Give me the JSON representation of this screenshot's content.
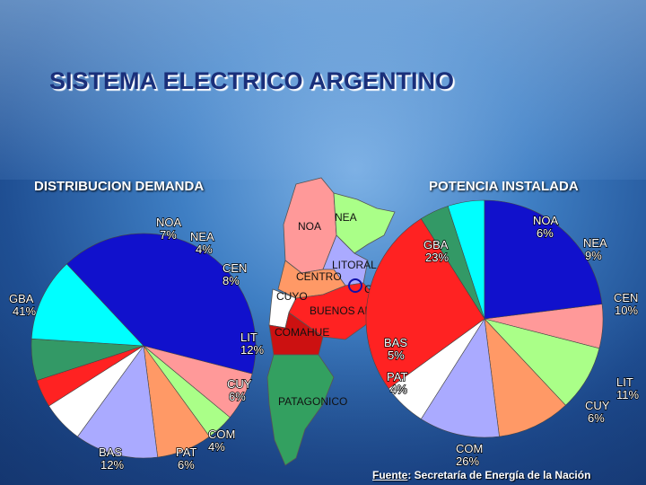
{
  "title": "SISTEMA ELECTRICO ARGENTINO",
  "source_prefix": "Fuente",
  "source_text": ": Secretaría de Energía de la Nación",
  "map_regions": [
    "NOA",
    "NEA",
    "LITORAL",
    "CENTRO",
    "GBA",
    "CUYO",
    "BUENOS AIRES",
    "COMAHUE",
    "PATAGONICO"
  ],
  "chart_data": [
    {
      "type": "pie",
      "title": "DISTRIBUCION DEMANDA",
      "slices": [
        {
          "label": "NOA",
          "percent_label": "7%",
          "value": 7,
          "color": "#ff9999"
        },
        {
          "label": "NEA",
          "percent_label": "4%",
          "value": 4,
          "color": "#aaff88"
        },
        {
          "label": "CEN",
          "percent_label": "8%",
          "value": 8,
          "color": "#ff9966"
        },
        {
          "label": "LIT",
          "percent_label": "12%",
          "value": 12,
          "color": "#aaaaff"
        },
        {
          "label": "CUY",
          "percent_label": "6%",
          "value": 6,
          "color": "#ffffff"
        },
        {
          "label": "COM",
          "percent_label": "4%",
          "value": 4,
          "color": "#ff2222"
        },
        {
          "label": "PAT",
          "percent_label": "6%",
          "value": 6,
          "color": "#339966"
        },
        {
          "label": "BAS",
          "percent_label": "12%",
          "value": 12,
          "color": "#00ffff"
        },
        {
          "label": "GBA",
          "percent_label": "41%",
          "value": 41,
          "color": "#1111cc"
        }
      ]
    },
    {
      "type": "pie",
      "title": "POTENCIA INSTALADA",
      "slices": [
        {
          "label": "NOA",
          "percent_label": "6%",
          "value": 6,
          "color": "#ff9999"
        },
        {
          "label": "NEA",
          "percent_label": "9%",
          "value": 9,
          "color": "#aaff88"
        },
        {
          "label": "CEN",
          "percent_label": "10%",
          "value": 10,
          "color": "#ff9966"
        },
        {
          "label": "LIT",
          "percent_label": "11%",
          "value": 11,
          "color": "#aaaaff"
        },
        {
          "label": "CUY",
          "percent_label": "6%",
          "value": 6,
          "color": "#ffffff"
        },
        {
          "label": "COM",
          "percent_label": "26%",
          "value": 26,
          "color": "#ff2222"
        },
        {
          "label": "PAT",
          "percent_label": "4%",
          "value": 4,
          "color": "#339966"
        },
        {
          "label": "BAS",
          "percent_label": "5%",
          "value": 5,
          "color": "#00ffff"
        },
        {
          "label": "GBA",
          "percent_label": "23%",
          "value": 23,
          "color": "#1111cc"
        }
      ]
    }
  ]
}
